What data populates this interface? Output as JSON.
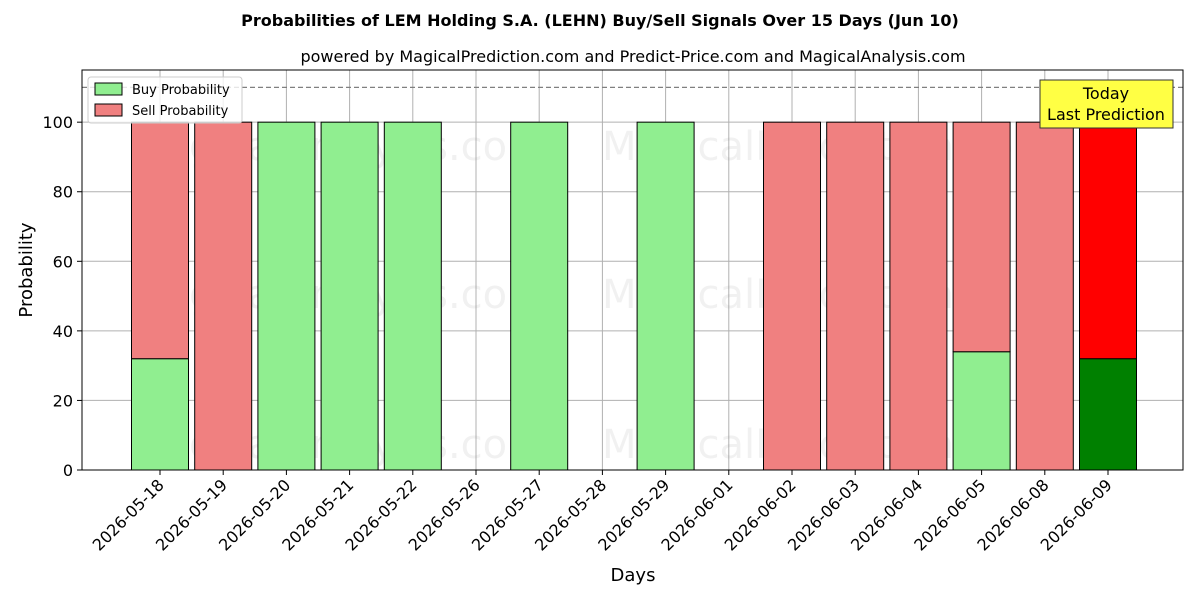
{
  "chart_data": {
    "type": "bar",
    "stacked": true,
    "title": "Probabilities of LEM Holding S.A. (LEHN) Buy/Sell Signals Over 15 Days (Jun 10)",
    "subtitle": "powered by MagicalPrediction.com and Predict-Price.com and MagicalAnalysis.com",
    "xlabel": "Days",
    "ylabel": "Probability",
    "ylim": [
      0,
      115
    ],
    "yticks": [
      0,
      20,
      40,
      60,
      80,
      100
    ],
    "grid": true,
    "legend_placement": "top-left",
    "categories": [
      "2026-05-18",
      "2026-05-19",
      "2026-05-20",
      "2026-05-21",
      "2026-05-22",
      "2026-05-26",
      "2026-05-27",
      "2026-05-28",
      "2026-05-29",
      "2026-06-01",
      "2026-06-02",
      "2026-06-03",
      "2026-06-04",
      "2026-06-05",
      "2026-06-08",
      "2026-06-09"
    ],
    "series": [
      {
        "name": "Buy Probability",
        "color": "#90ee90",
        "highlight_color": "#008000",
        "values": [
          32,
          0,
          100,
          100,
          100,
          null,
          100,
          null,
          100,
          null,
          0,
          0,
          0,
          34,
          0,
          32
        ]
      },
      {
        "name": "Sell Probability",
        "color": "#f08080",
        "highlight_color": "#ff0000",
        "values": [
          68,
          100,
          0,
          0,
          0,
          null,
          0,
          null,
          0,
          null,
          100,
          100,
          100,
          66,
          100,
          68
        ]
      }
    ],
    "reference_line": {
      "y": 110,
      "style": "dashed",
      "color": "#808080"
    },
    "highlight_index": 15,
    "annotation": {
      "lines": [
        "Today",
        "Last Prediction"
      ],
      "background": "#ffff44"
    },
    "watermarks": [
      "MagicalAnalysis.com",
      "MagicalPrediction.com"
    ]
  }
}
